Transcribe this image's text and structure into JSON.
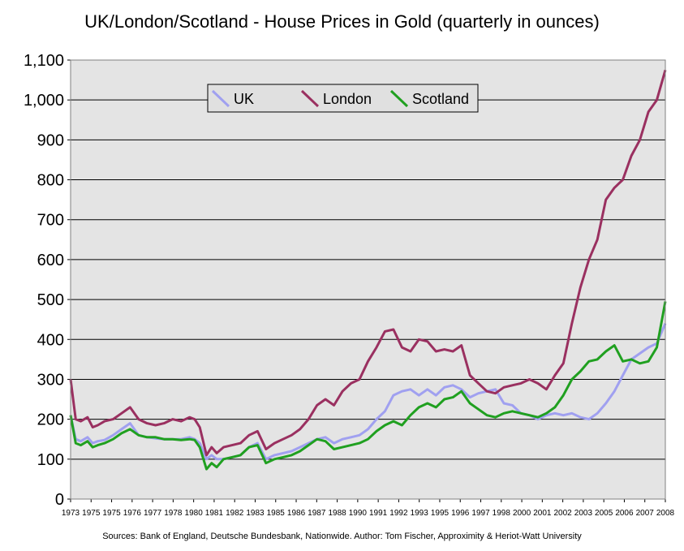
{
  "chart_data": {
    "type": "line",
    "title": "UK/London/Scotland - House Prices in Gold (quarterly in ounces)",
    "footer": "Sources: Bank of England, Deutsche Bundesbank, Nationwide. Author: Tom Fischer, Approximity & Heriot-Watt University",
    "xlabel": "",
    "ylabel": "",
    "xlim": [
      1973,
      2008
    ],
    "ylim": [
      0,
      1100
    ],
    "y_ticks": [
      "0",
      "100",
      "200",
      "300",
      "400",
      "500",
      "600",
      "700",
      "800",
      "900",
      "1,000",
      "1,100"
    ],
    "x_ticks": [
      "1973",
      "1975",
      "1975",
      "1976",
      "1977",
      "1978",
      "1980",
      "1981",
      "1982",
      "1983",
      "1985",
      "1986",
      "1987",
      "1988",
      "1990",
      "1991",
      "1992",
      "1993",
      "1995",
      "1996",
      "1997",
      "1998",
      "2000",
      "2001",
      "2002",
      "2003",
      "2005",
      "2006",
      "2007",
      "2008"
    ],
    "grid": true,
    "legend_position": "top-left",
    "series": [
      {
        "name": "UK",
        "color": "#a0a0f0",
        "points": [
          [
            1973,
            210
          ],
          [
            1973.3,
            150
          ],
          [
            1973.6,
            145
          ],
          [
            1974,
            155
          ],
          [
            1974.3,
            140
          ],
          [
            1974.6,
            145
          ],
          [
            1975,
            148
          ],
          [
            1975.5,
            160
          ],
          [
            1976,
            175
          ],
          [
            1976.5,
            190
          ],
          [
            1977,
            160
          ],
          [
            1977.5,
            155
          ],
          [
            1978,
            152
          ],
          [
            1978.5,
            150
          ],
          [
            1979,
            150
          ],
          [
            1979.5,
            150
          ],
          [
            1980,
            155
          ],
          [
            1980.3,
            150
          ],
          [
            1980.6,
            140
          ],
          [
            1981,
            100
          ],
          [
            1981.3,
            110
          ],
          [
            1981.6,
            100
          ],
          [
            1982,
            100
          ],
          [
            1982.5,
            105
          ],
          [
            1983,
            110
          ],
          [
            1983.5,
            130
          ],
          [
            1984,
            140
          ],
          [
            1984.5,
            100
          ],
          [
            1985,
            110
          ],
          [
            1985.5,
            115
          ],
          [
            1986,
            120
          ],
          [
            1986.5,
            130
          ],
          [
            1987,
            140
          ],
          [
            1987.5,
            150
          ],
          [
            1988,
            155
          ],
          [
            1988.5,
            140
          ],
          [
            1989,
            150
          ],
          [
            1989.5,
            155
          ],
          [
            1990,
            160
          ],
          [
            1990.5,
            175
          ],
          [
            1991,
            200
          ],
          [
            1991.5,
            220
          ],
          [
            1992,
            260
          ],
          [
            1992.5,
            270
          ],
          [
            1993,
            275
          ],
          [
            1993.5,
            260
          ],
          [
            1994,
            275
          ],
          [
            1994.5,
            260
          ],
          [
            1995,
            280
          ],
          [
            1995.5,
            285
          ],
          [
            1996,
            275
          ],
          [
            1996.5,
            255
          ],
          [
            1997,
            265
          ],
          [
            1997.5,
            270
          ],
          [
            1998,
            275
          ],
          [
            1998.5,
            240
          ],
          [
            1999,
            235
          ],
          [
            1999.5,
            215
          ],
          [
            2000,
            210
          ],
          [
            2000.5,
            200
          ],
          [
            2001,
            210
          ],
          [
            2001.5,
            215
          ],
          [
            2002,
            210
          ],
          [
            2002.5,
            215
          ],
          [
            2003,
            205
          ],
          [
            2003.5,
            200
          ],
          [
            2004,
            215
          ],
          [
            2004.5,
            240
          ],
          [
            2005,
            270
          ],
          [
            2005.5,
            310
          ],
          [
            2006,
            350
          ],
          [
            2006.5,
            365
          ],
          [
            2007,
            380
          ],
          [
            2007.5,
            390
          ],
          [
            2008,
            440
          ]
        ]
      },
      {
        "name": "London",
        "color": "#9a3060",
        "points": [
          [
            1973,
            300
          ],
          [
            1973.3,
            200
          ],
          [
            1973.6,
            195
          ],
          [
            1974,
            205
          ],
          [
            1974.3,
            180
          ],
          [
            1974.6,
            185
          ],
          [
            1975,
            195
          ],
          [
            1975.5,
            200
          ],
          [
            1976,
            215
          ],
          [
            1976.5,
            230
          ],
          [
            1977,
            200
          ],
          [
            1977.5,
            190
          ],
          [
            1978,
            185
          ],
          [
            1978.5,
            190
          ],
          [
            1979,
            200
          ],
          [
            1979.5,
            195
          ],
          [
            1980,
            205
          ],
          [
            1980.3,
            200
          ],
          [
            1980.6,
            180
          ],
          [
            1981,
            110
          ],
          [
            1981.3,
            130
          ],
          [
            1981.6,
            115
          ],
          [
            1982,
            130
          ],
          [
            1982.5,
            135
          ],
          [
            1983,
            140
          ],
          [
            1983.5,
            160
          ],
          [
            1984,
            170
          ],
          [
            1984.5,
            125
          ],
          [
            1985,
            140
          ],
          [
            1985.5,
            150
          ],
          [
            1986,
            160
          ],
          [
            1986.5,
            175
          ],
          [
            1987,
            200
          ],
          [
            1987.5,
            235
          ],
          [
            1988,
            250
          ],
          [
            1988.5,
            235
          ],
          [
            1989,
            270
          ],
          [
            1989.5,
            290
          ],
          [
            1990,
            300
          ],
          [
            1990.5,
            345
          ],
          [
            1991,
            380
          ],
          [
            1991.5,
            420
          ],
          [
            1992,
            425
          ],
          [
            1992.5,
            380
          ],
          [
            1993,
            370
          ],
          [
            1993.5,
            400
          ],
          [
            1994,
            395
          ],
          [
            1994.5,
            370
          ],
          [
            1995,
            375
          ],
          [
            1995.5,
            370
          ],
          [
            1996,
            385
          ],
          [
            1996.5,
            310
          ],
          [
            1997,
            290
          ],
          [
            1997.5,
            270
          ],
          [
            1998,
            265
          ],
          [
            1998.5,
            280
          ],
          [
            1999,
            285
          ],
          [
            1999.5,
            290
          ],
          [
            2000,
            300
          ],
          [
            2000.5,
            290
          ],
          [
            2001,
            275
          ],
          [
            2001.5,
            310
          ],
          [
            2002,
            340
          ],
          [
            2002.5,
            440
          ],
          [
            2003,
            530
          ],
          [
            2003.5,
            600
          ],
          [
            2004,
            650
          ],
          [
            2004.5,
            750
          ],
          [
            2005,
            780
          ],
          [
            2005.5,
            800
          ],
          [
            2006,
            860
          ],
          [
            2006.5,
            900
          ],
          [
            2007,
            970
          ],
          [
            2007.5,
            1000
          ],
          [
            2008,
            1075
          ]
        ]
      },
      {
        "name": "Scotland",
        "color": "#20a020",
        "points": [
          [
            1973,
            210
          ],
          [
            1973.3,
            140
          ],
          [
            1973.6,
            135
          ],
          [
            1974,
            145
          ],
          [
            1974.3,
            130
          ],
          [
            1974.6,
            135
          ],
          [
            1975,
            140
          ],
          [
            1975.5,
            150
          ],
          [
            1976,
            165
          ],
          [
            1976.5,
            175
          ],
          [
            1977,
            160
          ],
          [
            1977.5,
            155
          ],
          [
            1978,
            155
          ],
          [
            1978.5,
            150
          ],
          [
            1979,
            150
          ],
          [
            1979.5,
            148
          ],
          [
            1980,
            150
          ],
          [
            1980.3,
            148
          ],
          [
            1980.6,
            130
          ],
          [
            1981,
            75
          ],
          [
            1981.3,
            90
          ],
          [
            1981.6,
            80
          ],
          [
            1982,
            100
          ],
          [
            1982.5,
            105
          ],
          [
            1983,
            110
          ],
          [
            1983.5,
            130
          ],
          [
            1984,
            135
          ],
          [
            1984.5,
            90
          ],
          [
            1985,
            100
          ],
          [
            1985.5,
            105
          ],
          [
            1986,
            110
          ],
          [
            1986.5,
            120
          ],
          [
            1987,
            135
          ],
          [
            1987.5,
            150
          ],
          [
            1988,
            145
          ],
          [
            1988.5,
            125
          ],
          [
            1989,
            130
          ],
          [
            1989.5,
            135
          ],
          [
            1990,
            140
          ],
          [
            1990.5,
            150
          ],
          [
            1991,
            170
          ],
          [
            1991.5,
            185
          ],
          [
            1992,
            195
          ],
          [
            1992.5,
            185
          ],
          [
            1993,
            210
          ],
          [
            1993.5,
            230
          ],
          [
            1994,
            240
          ],
          [
            1994.5,
            230
          ],
          [
            1995,
            250
          ],
          [
            1995.5,
            255
          ],
          [
            1996,
            270
          ],
          [
            1996.5,
            240
          ],
          [
            1997,
            225
          ],
          [
            1997.5,
            210
          ],
          [
            1998,
            205
          ],
          [
            1998.5,
            215
          ],
          [
            1999,
            220
          ],
          [
            1999.5,
            215
          ],
          [
            2000,
            210
          ],
          [
            2000.5,
            205
          ],
          [
            2001,
            215
          ],
          [
            2001.5,
            230
          ],
          [
            2002,
            260
          ],
          [
            2002.5,
            300
          ],
          [
            2003,
            320
          ],
          [
            2003.5,
            345
          ],
          [
            2004,
            350
          ],
          [
            2004.5,
            370
          ],
          [
            2005,
            385
          ],
          [
            2005.5,
            345
          ],
          [
            2006,
            350
          ],
          [
            2006.5,
            340
          ],
          [
            2007,
            345
          ],
          [
            2007.5,
            380
          ],
          [
            2008,
            495
          ]
        ]
      }
    ]
  }
}
